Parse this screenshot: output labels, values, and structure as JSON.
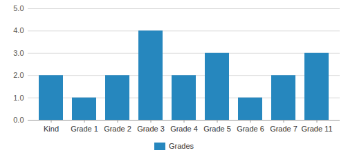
{
  "chart_data": {
    "type": "bar",
    "categories": [
      "Kind",
      "Grade 1",
      "Grade 2",
      "Grade 3",
      "Grade 4",
      "Grade 5",
      "Grade 6",
      "Grade 7",
      "Grade 11"
    ],
    "series": [
      {
        "name": "Grades",
        "color": "#2687be",
        "values": [
          2,
          1,
          2,
          4,
          2,
          3,
          1,
          2,
          3
        ]
      }
    ],
    "ylim": [
      0,
      5
    ],
    "yticks": [
      0,
      1,
      2,
      3,
      4,
      5
    ],
    "grid": true,
    "legend": "bottom"
  }
}
